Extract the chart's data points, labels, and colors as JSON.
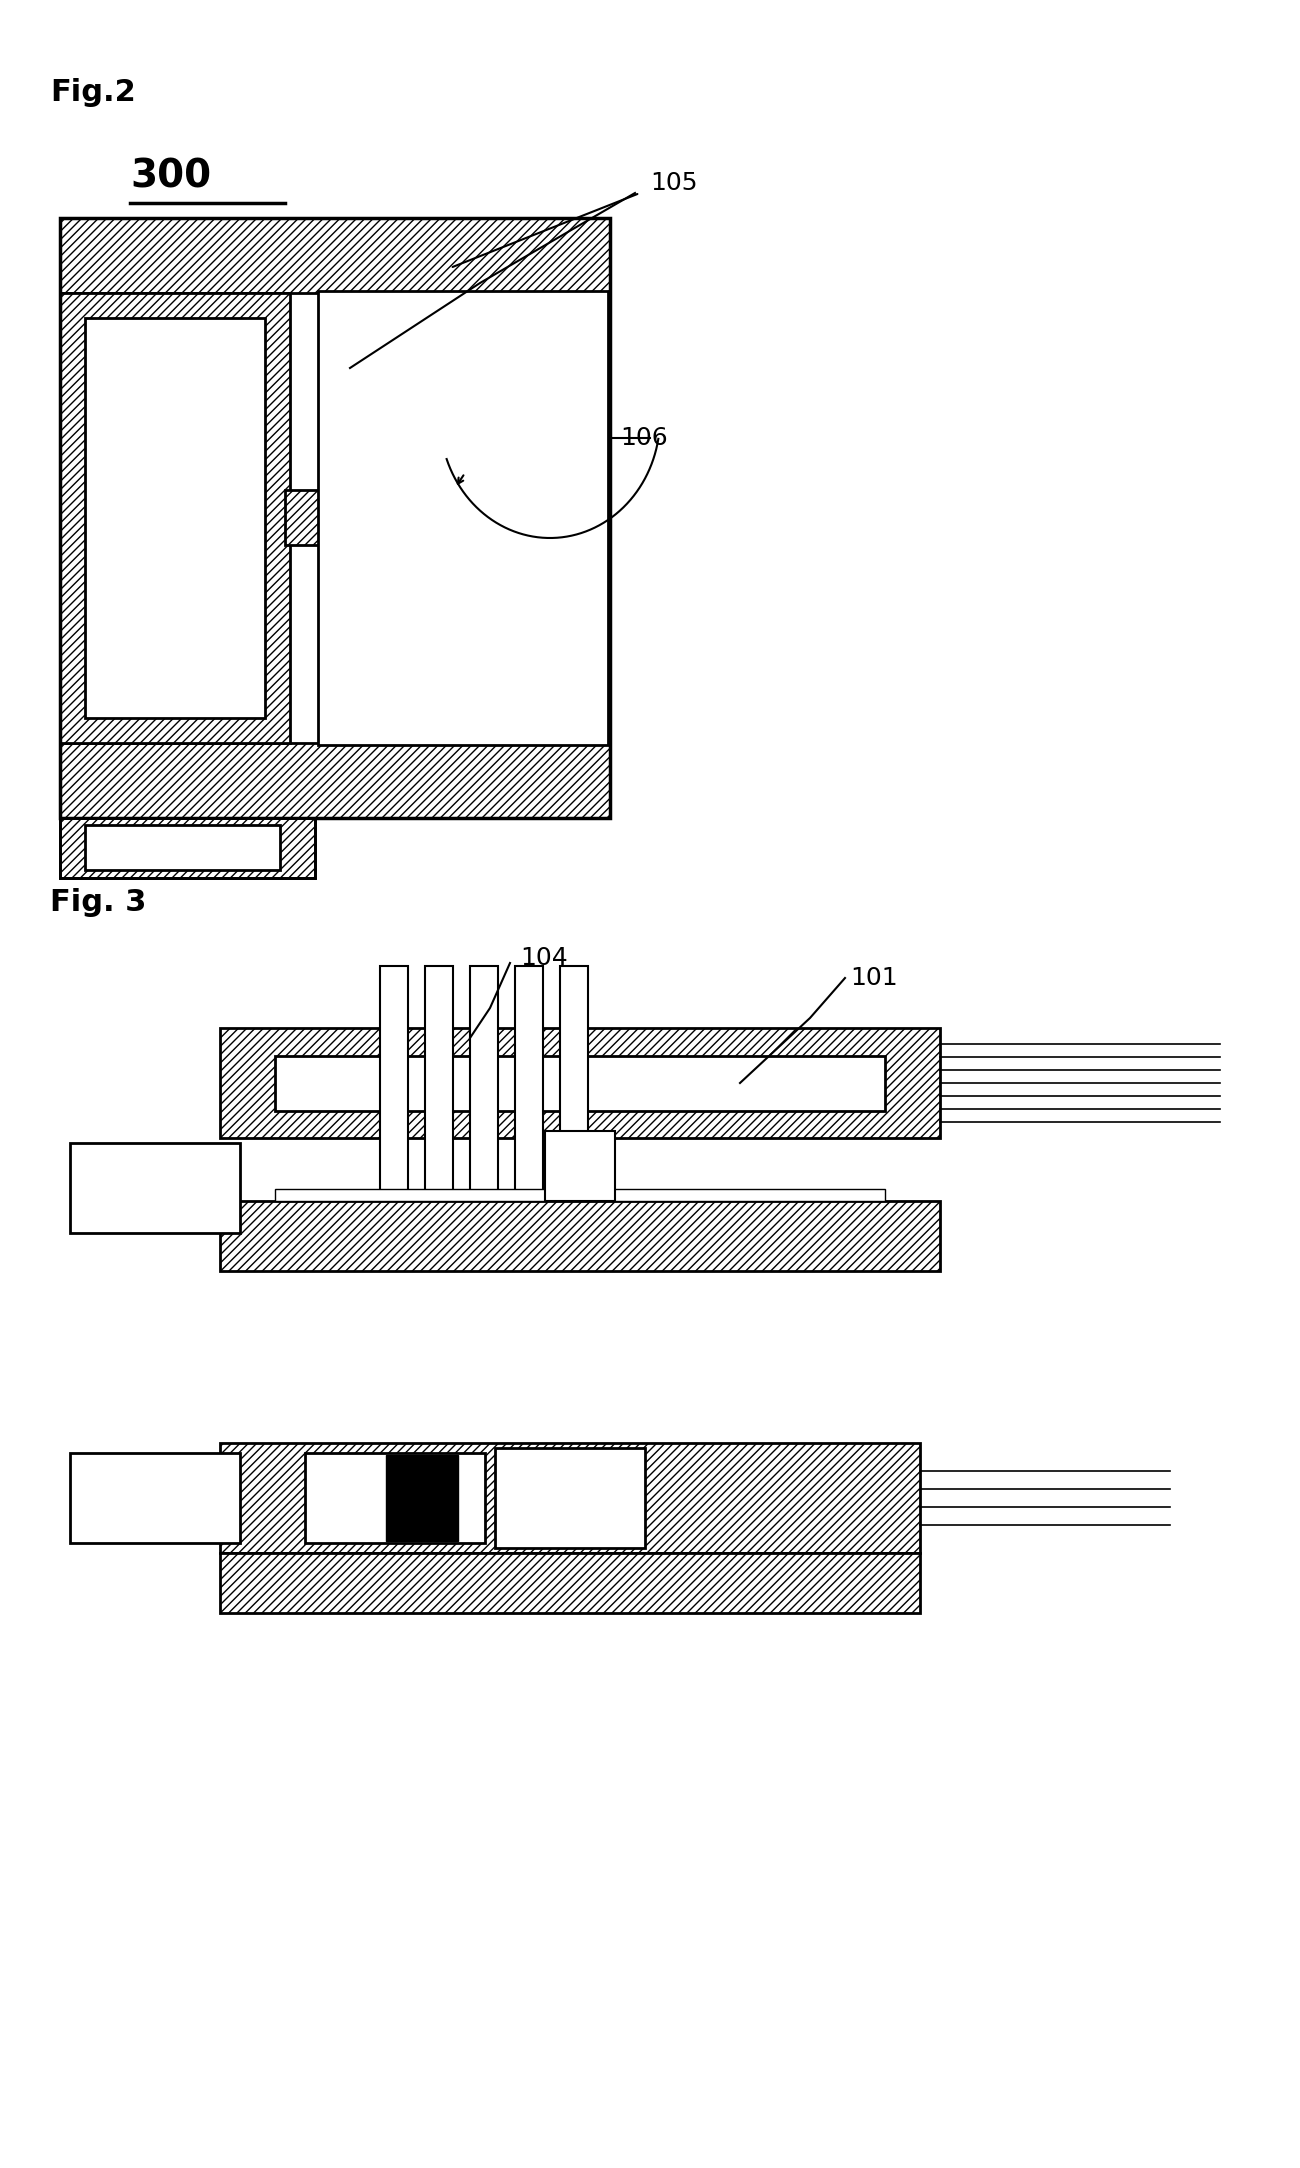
{
  "fig2_label": "Fig.2",
  "fig3_label": "Fig. 3",
  "ref_300": "300",
  "ref_105": "105",
  "ref_106": "106",
  "ref_104": "104",
  "ref_101": "101",
  "bg_color": "#ffffff",
  "hatch_color": "#000000",
  "line_color": "#000000",
  "lw": 2.0
}
